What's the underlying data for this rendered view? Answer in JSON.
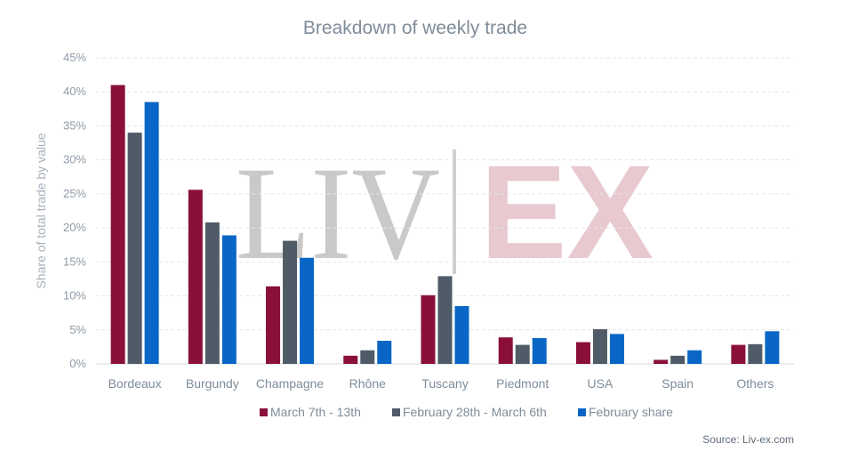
{
  "chart_data": {
    "type": "bar",
    "title": "Breakdown of weekly trade",
    "xlabel": "",
    "ylabel": "Share of total trade by value",
    "ylim": [
      0,
      45
    ],
    "y_tick_step": 5,
    "y_tick_suffix": "%",
    "grid": true,
    "legend_position": "bottom",
    "categories": [
      "Bordeaux",
      "Burgundy",
      "Champagne",
      "Rhône",
      "Tuscany",
      "Piedmont",
      "USA",
      "Spain",
      "Others"
    ],
    "series": [
      {
        "name": "March 7th - 13th",
        "color": "#8a0f3a",
        "values": [
          41.0,
          25.6,
          11.4,
          1.2,
          10.1,
          3.9,
          3.2,
          0.6,
          2.8
        ]
      },
      {
        "name": "February 28th - March 6th",
        "color": "#4f5b66",
        "values": [
          34.0,
          20.8,
          18.1,
          2.0,
          12.9,
          2.8,
          5.1,
          1.2,
          2.9
        ]
      },
      {
        "name": "February share",
        "color": "#0a66c6",
        "values": [
          38.5,
          18.9,
          15.6,
          3.4,
          8.5,
          3.8,
          4.4,
          2.0,
          4.8
        ]
      }
    ],
    "source": "Source: Liv-ex.com"
  },
  "watermark": {
    "left": "LIV",
    "right": "EX",
    "left_color": "#c9c9c9",
    "right_color": "#e8c9d0"
  }
}
